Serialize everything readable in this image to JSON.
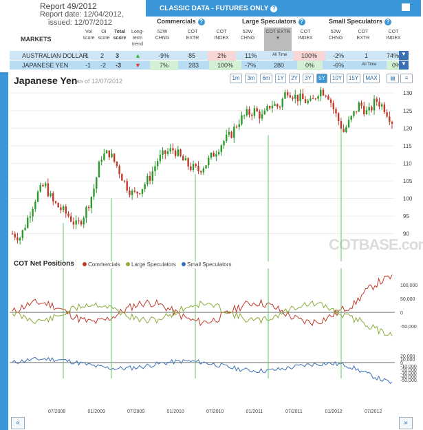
{
  "report": {
    "title": "Report 49/2012",
    "date": "Report date: 12/04/2012,",
    "issued": "issued: 12/07/2012"
  },
  "classic": {
    "label": "CLASSIC DATA - FUTURES ONLY"
  },
  "sections": {
    "commercials": "Commercials",
    "large": "Large Speculators",
    "small": "Small Speculators"
  },
  "columns": {
    "markets": "MARKETS",
    "vol": "Vol score",
    "oi": "OI score",
    "total": "Total score",
    "trend": "Long-term trend",
    "w52": "52W CHNG",
    "extr": "COT EXTR",
    "index": "COT INDEX",
    "alltime": "All Time"
  },
  "rows": [
    {
      "market": "AUSTRALIAN DOLLAR",
      "vol": "1",
      "oi": "2",
      "total": "3",
      "c52": "-9%",
      "cextr": "85",
      "cidx": "2%",
      "l52": "11%",
      "lextr": "All Time",
      "lidx": "100%",
      "s52": "-2%",
      "sextr": "1",
      "sidx": "74%"
    },
    {
      "market": "JAPANESE YEN",
      "vol": "-1",
      "oi": "-2",
      "total": "-3",
      "c52": "7%",
      "cextr": "283",
      "cidx": "100%",
      "l52": "-7%",
      "lextr": "280",
      "lidx": "0%",
      "s52": "-6%",
      "sextr": "All Time",
      "sidx": "0%"
    }
  ],
  "chart": {
    "title": "Japanese Yen",
    "asof": "as of 12/07/2012",
    "ranges": [
      "1m",
      "3m",
      "6m",
      "1Y",
      "2Y",
      "3Y",
      "5Y",
      "10Y",
      "15Y",
      "MAX"
    ],
    "active": "5Y",
    "watermark": "COTBASE.com"
  },
  "net": {
    "title": "COT Net Positions",
    "legend": [
      "Commercials",
      "Large Speculators",
      "Small Speculators"
    ]
  },
  "colors": {
    "commercials": "#c0392b",
    "large": "#8aab3a",
    "small": "#3a6fb5",
    "accent": "#3a96d6"
  },
  "chart_data": {
    "type": "line",
    "price_axis": [
      130,
      125,
      120,
      115,
      110,
      105,
      100,
      95,
      90
    ],
    "net_axis": [
      "100,000",
      "50,000",
      "0",
      "-50,000"
    ],
    "small_axis": [
      "20,000",
      "10,000",
      "0",
      "-10,000",
      "-20,000",
      "-30,000",
      "-40,000",
      "-50,000"
    ],
    "x_labels": [
      "07/2008",
      "01/2009",
      "07/2009",
      "01/2010",
      "07/2010",
      "01/2011",
      "07/2011",
      "01/2012",
      "07/2012"
    ],
    "price": [
      90,
      89,
      95,
      101,
      104,
      99,
      97,
      95,
      92,
      96,
      102,
      112,
      113,
      109,
      104,
      101,
      103,
      106,
      111,
      113,
      114,
      111,
      109,
      108,
      110,
      113,
      116,
      118,
      122,
      124,
      125,
      123,
      127,
      126,
      131,
      129,
      128,
      127,
      131,
      130,
      124,
      119,
      123,
      127,
      124,
      128,
      126,
      122
    ]
  },
  "pager": {
    "prev": "«",
    "next": "»"
  }
}
